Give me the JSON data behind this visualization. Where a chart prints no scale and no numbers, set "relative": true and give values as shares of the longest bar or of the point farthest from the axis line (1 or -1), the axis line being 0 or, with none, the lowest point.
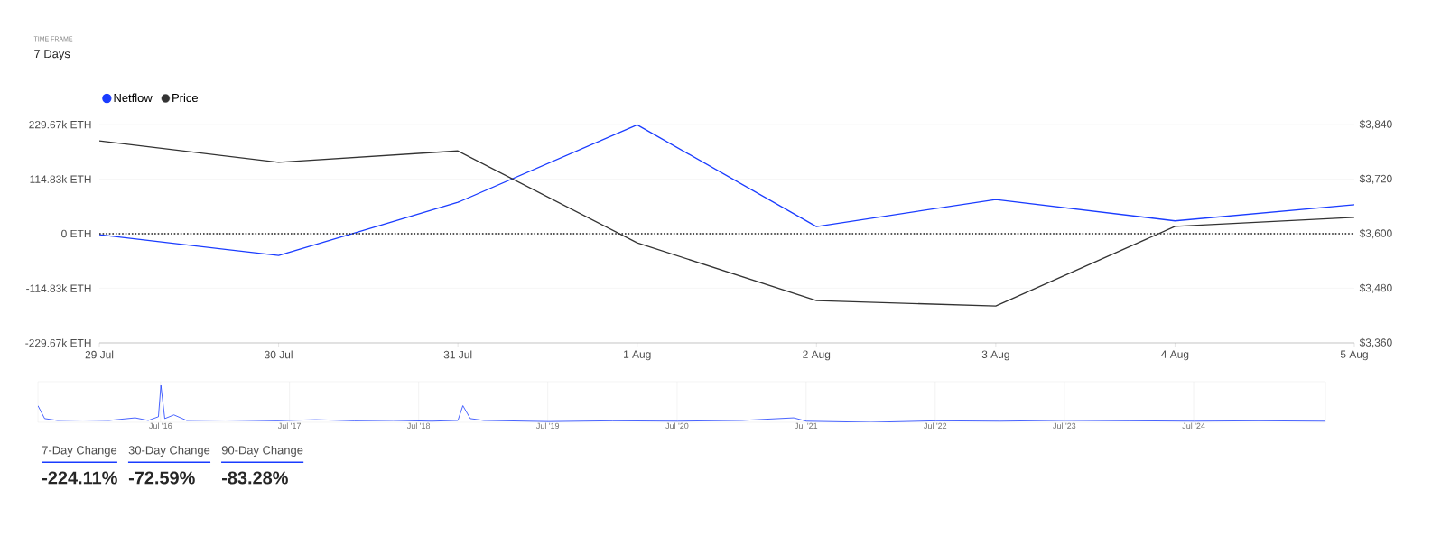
{
  "chart_data": [
    {
      "type": "line",
      "annotations": [
        "TIME FRAME",
        "7 Days"
      ],
      "categories": [
        "29 Jul",
        "30 Jul",
        "31 Jul",
        "1 Aug",
        "2 Aug",
        "3 Aug",
        "4 Aug",
        "5 Aug"
      ],
      "series": [
        {
          "name": "Netflow",
          "color": "#1a3cff",
          "values": [
            -2,
            -46,
            66,
            229,
            15,
            72,
            27,
            61
          ]
        },
        {
          "name": "Price",
          "color": "#333333",
          "axis": "y2",
          "values": [
            3804,
            3757,
            3782,
            3580,
            3453,
            3441,
            3616,
            3636
          ]
        }
      ],
      "ylim": [
        -229.67,
        229.67
      ],
      "yticks": [
        {
          "value": -229.67,
          "label": "-229.67k ETH"
        },
        {
          "value": -114.83,
          "label": "-114.83k ETH"
        },
        {
          "value": 0,
          "label": "0 ETH"
        },
        {
          "value": 114.83,
          "label": "114.83k ETH"
        },
        {
          "value": 229.67,
          "label": "229.67k ETH"
        }
      ],
      "y2lim": [
        3360,
        3840
      ],
      "y2ticks": [
        {
          "value": 3360,
          "label": "$3,360"
        },
        {
          "value": 3480,
          "label": "$3,480"
        },
        {
          "value": 3600,
          "label": "$3,600"
        },
        {
          "value": 3720,
          "label": "$3,720"
        },
        {
          "value": 3840,
          "label": "$3,840"
        }
      ],
      "ref_lines": [
        {
          "axis": "y",
          "value": 0,
          "line_style": "dotted",
          "color": "#222222"
        }
      ],
      "grid": "y",
      "legend": "top left"
    },
    {
      "type": "line",
      "relative": true,
      "tick_labels": "x",
      "grid": "x",
      "x": [
        "2015-07-20",
        "2015-08-08",
        "2015-09-13",
        "2015-11-24",
        "2016-02-06",
        "2016-04-20",
        "2016-05-27",
        "2016-06-25",
        "2016-07-02",
        "2016-07-13",
        "2016-08-08",
        "2016-09-13",
        "2017-01-01",
        "2017-05-27",
        "2017-09-13",
        "2018-01-01",
        "2018-04-20",
        "2018-08-08",
        "2018-10-20",
        "2018-11-03",
        "2018-11-24",
        "2019-01-01",
        "2019-07-02",
        "2020-01-01",
        "2020-07-02",
        "2021-01-01",
        "2021-05-27",
        "2021-07-02",
        "2022-01-01",
        "2022-07-02",
        "2023-01-01",
        "2023-07-02",
        "2024-01-01",
        "2024-07-02",
        "2025-01-01",
        "2025-07-09"
      ],
      "series": [
        {
          "color": "#1a3cff",
          "values": [
            0.45,
            0.1,
            0.05,
            0.06,
            0.05,
            0.12,
            0.05,
            0.15,
            1.0,
            0.1,
            0.2,
            0.05,
            0.06,
            0.04,
            0.07,
            0.04,
            0.05,
            0.03,
            0.05,
            0.45,
            0.1,
            0.05,
            0.02,
            0.04,
            0.03,
            0.05,
            0.12,
            0.03,
            0.0,
            0.04,
            0.03,
            0.05,
            0.04,
            0.03,
            0.04,
            0.03
          ]
        }
      ],
      "xlim": [
        "2015-07-20",
        "2025-07-09"
      ],
      "xticks": [
        {
          "value": "2016-07-01",
          "label": "Jul '16"
        },
        {
          "value": "2017-07-01",
          "label": "Jul '17"
        },
        {
          "value": "2018-07-01",
          "label": "Jul '18"
        },
        {
          "value": "2019-07-01",
          "label": "Jul '19"
        },
        {
          "value": "2020-07-01",
          "label": "Jul '20"
        },
        {
          "value": "2021-07-01",
          "label": "Jul '21"
        },
        {
          "value": "2022-07-01",
          "label": "Jul '22"
        },
        {
          "value": "2023-07-01",
          "label": "Jul '23"
        },
        {
          "value": "2024-07-01",
          "label": "Jul '24"
        }
      ]
    },
    {
      "type": "other",
      "annotations": [
        "7-Day Change",
        "-224.11%",
        "30-Day Change",
        "-72.59%",
        "90-Day Change",
        "-83.28%"
      ]
    }
  ]
}
